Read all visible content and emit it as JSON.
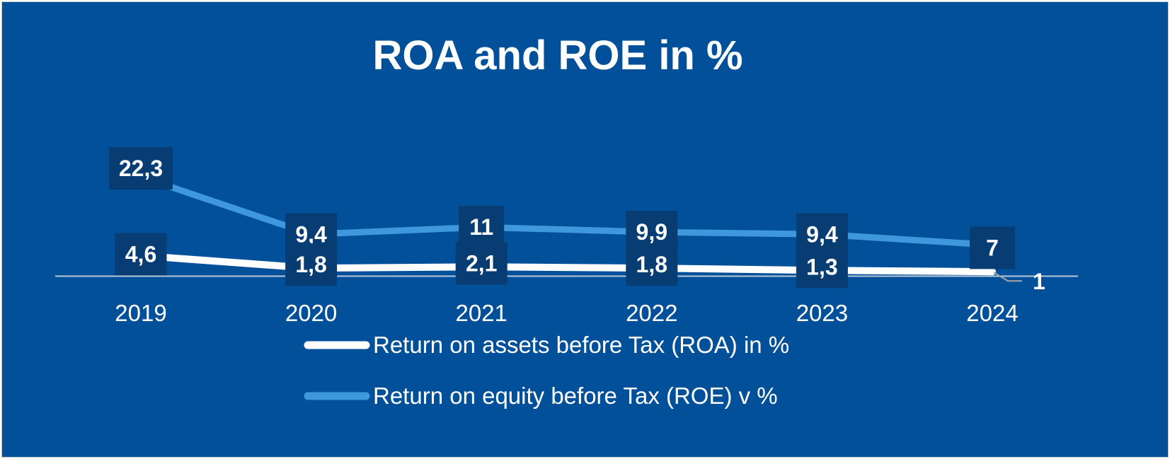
{
  "chart_data": {
    "type": "line",
    "title": "ROA and ROE in %",
    "categories": [
      "2019",
      "2020",
      "2021",
      "2022",
      "2023",
      "2024"
    ],
    "series": [
      {
        "name": "Return on assets before Tax (ROA) in %",
        "values": [
          4.6,
          1.8,
          2.1,
          1.8,
          1.3,
          1
        ],
        "labels": [
          "4,6",
          "1,8",
          "2,1",
          "1,8",
          "1,3",
          "1"
        ],
        "color": "#ffffff"
      },
      {
        "name": "Return on equity before Tax (ROE) v %",
        "values": [
          22.3,
          9.4,
          11,
          9.9,
          9.4,
          7
        ],
        "labels": [
          "22,3",
          "9,4",
          "11",
          "9,9",
          "9,4",
          "7"
        ],
        "color": "#3f97dc"
      }
    ],
    "xlabel": "",
    "ylabel": "",
    "ylim": [
      0,
      25
    ],
    "grid": false,
    "legend": "bottom",
    "colors": {
      "background": "#02509a",
      "label_box": "#083d73",
      "axis": "#b9c8d8"
    }
  }
}
